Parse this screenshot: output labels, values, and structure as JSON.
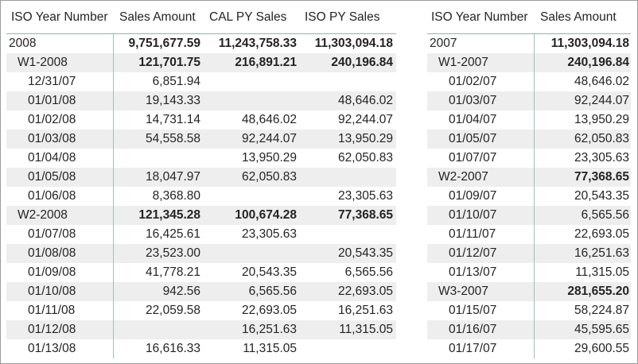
{
  "left_matrix": {
    "headers": [
      "ISO Year Number",
      "Sales Amount",
      "CAL PY Sales",
      "ISO PY Sales"
    ],
    "rows": [
      {
        "level": 0,
        "label": "2008",
        "sales": "9,751,677.59",
        "cal_py": "11,243,758.33",
        "iso_py": "11,303,094.18",
        "bold": true
      },
      {
        "level": 1,
        "label": "W1-2008",
        "sales": "121,701.75",
        "cal_py": "216,891.21",
        "iso_py": "240,196.84",
        "bold": true
      },
      {
        "level": 2,
        "label": "12/31/07",
        "sales": "6,851.94",
        "cal_py": "",
        "iso_py": ""
      },
      {
        "level": 2,
        "label": "01/01/08",
        "sales": "19,143.33",
        "cal_py": "",
        "iso_py": "48,646.02"
      },
      {
        "level": 2,
        "label": "01/02/08",
        "sales": "14,731.14",
        "cal_py": "48,646.02",
        "iso_py": "92,244.07"
      },
      {
        "level": 2,
        "label": "01/03/08",
        "sales": "54,558.58",
        "cal_py": "92,244.07",
        "iso_py": "13,950.29"
      },
      {
        "level": 2,
        "label": "01/04/08",
        "sales": "",
        "cal_py": "13,950.29",
        "iso_py": "62,050.83"
      },
      {
        "level": 2,
        "label": "01/05/08",
        "sales": "18,047.97",
        "cal_py": "62,050.83",
        "iso_py": ""
      },
      {
        "level": 2,
        "label": "01/06/08",
        "sales": "8,368.80",
        "cal_py": "",
        "iso_py": "23,305.63"
      },
      {
        "level": 1,
        "label": "W2-2008",
        "sales": "121,345.28",
        "cal_py": "100,674.28",
        "iso_py": "77,368.65",
        "bold": true
      },
      {
        "level": 2,
        "label": "01/07/08",
        "sales": "16,425.61",
        "cal_py": "23,305.63",
        "iso_py": ""
      },
      {
        "level": 2,
        "label": "01/08/08",
        "sales": "23,523.00",
        "cal_py": "",
        "iso_py": "20,543.35"
      },
      {
        "level": 2,
        "label": "01/09/08",
        "sales": "41,778.21",
        "cal_py": "20,543.35",
        "iso_py": "6,565.56"
      },
      {
        "level": 2,
        "label": "01/10/08",
        "sales": "942.56",
        "cal_py": "6,565.56",
        "iso_py": "22,693.05"
      },
      {
        "level": 2,
        "label": "01/11/08",
        "sales": "22,059.58",
        "cal_py": "22,693.05",
        "iso_py": "16,251.63"
      },
      {
        "level": 2,
        "label": "01/12/08",
        "sales": "",
        "cal_py": "16,251.63",
        "iso_py": "11,315.05"
      },
      {
        "level": 2,
        "label": "01/13/08",
        "sales": "16,616.33",
        "cal_py": "11,315.05",
        "iso_py": ""
      }
    ]
  },
  "right_matrix": {
    "headers": [
      "ISO Year Number",
      "Sales Amount"
    ],
    "rows": [
      {
        "level": 0,
        "label": "2007",
        "sales": "11,303,094.18",
        "bold": true
      },
      {
        "level": 1,
        "label": "W1-2007",
        "sales": "240,196.84",
        "bold": true
      },
      {
        "level": 2,
        "label": "01/02/07",
        "sales": "48,646.02"
      },
      {
        "level": 2,
        "label": "01/03/07",
        "sales": "92,244.07"
      },
      {
        "level": 2,
        "label": "01/04/07",
        "sales": "13,950.29"
      },
      {
        "level": 2,
        "label": "01/05/07",
        "sales": "62,050.83"
      },
      {
        "level": 2,
        "label": "01/07/07",
        "sales": "23,305.63"
      },
      {
        "level": 1,
        "label": "W2-2007",
        "sales": "77,368.65",
        "bold": true
      },
      {
        "level": 2,
        "label": "01/09/07",
        "sales": "20,543.35"
      },
      {
        "level": 2,
        "label": "01/10/07",
        "sales": "6,565.56"
      },
      {
        "level": 2,
        "label": "01/11/07",
        "sales": "22,693.05"
      },
      {
        "level": 2,
        "label": "01/12/07",
        "sales": "16,251.63"
      },
      {
        "level": 2,
        "label": "01/13/07",
        "sales": "11,315.05"
      },
      {
        "level": 1,
        "label": "W3-2007",
        "sales": "281,655.20",
        "bold": true
      },
      {
        "level": 2,
        "label": "01/15/07",
        "sales": "58,224.87"
      },
      {
        "level": 2,
        "label": "01/16/07",
        "sales": "45,595.65"
      },
      {
        "level": 2,
        "label": "01/17/07",
        "sales": "29,600.55"
      }
    ]
  }
}
